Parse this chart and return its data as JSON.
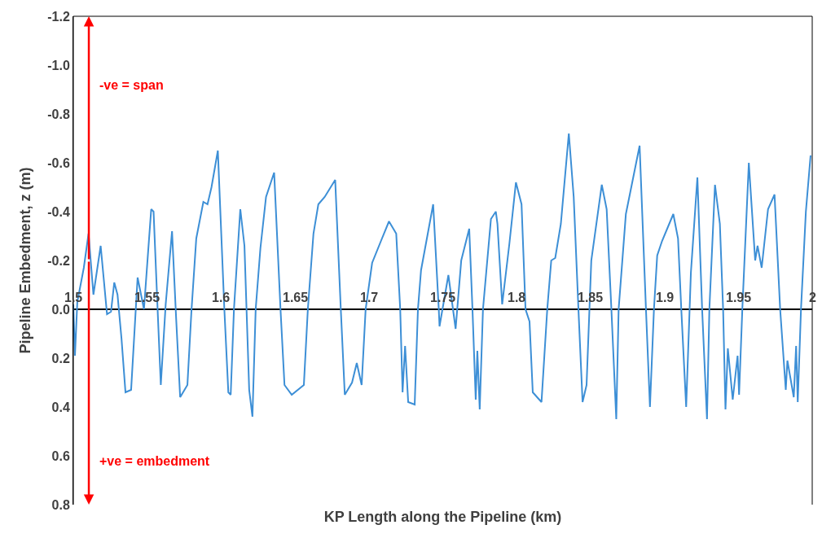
{
  "chart_data": {
    "type": "line",
    "xlabel": "KP Length along the Pipeline (km)",
    "ylabel": "Pipeline Embedment, z (m)",
    "annotations": [
      "-ve = span",
      "+ve = embedment"
    ],
    "xlim": [
      1.5,
      2.0
    ],
    "xticks": [
      1.5,
      1.55,
      1.6,
      1.65,
      1.7,
      1.75,
      1.8,
      1.85,
      1.9,
      1.95,
      2
    ],
    "ylim": [
      0.8,
      -1.2
    ],
    "yticks": [
      -1.2,
      {
        "value": -1.0,
        "label": "-1.0"
      },
      -0.8,
      -0.6,
      -0.4,
      -0.2,
      {
        "value": 0.0,
        "label": "0.0"
      },
      0.2,
      0.4,
      0.6,
      0.8
    ],
    "grid": false,
    "marker": "none",
    "line_style": "solid",
    "series": [
      {
        "color": "#3d8fd6",
        "x": [
          1.5,
          1.5011,
          1.5027,
          1.5071,
          1.5103,
          1.5136,
          1.5185,
          1.5228,
          1.5255,
          1.5277,
          1.5299,
          1.5326,
          1.5353,
          1.5391,
          1.5435,
          1.5478,
          1.5527,
          1.5543,
          1.5571,
          1.5592,
          1.5625,
          1.5668,
          1.5696,
          1.5723,
          1.5772,
          1.5799,
          1.5832,
          1.588,
          1.5908,
          1.5935,
          1.5978,
          1.6022,
          1.6049,
          1.6065,
          1.6087,
          1.613,
          1.6158,
          1.619,
          1.6212,
          1.6234,
          1.6266,
          1.6304,
          1.6359,
          1.6402,
          1.6429,
          1.6478,
          1.656,
          1.6587,
          1.6625,
          1.6658,
          1.6701,
          1.6772,
          1.681,
          1.6837,
          1.6886,
          1.6918,
          1.6951,
          1.6978,
          1.7022,
          1.7082,
          1.7136,
          1.7185,
          1.7212,
          1.7228,
          1.7245,
          1.7266,
          1.731,
          1.7332,
          1.7353,
          1.7435,
          1.7473,
          1.7478,
          1.7538,
          1.7587,
          1.7625,
          1.7679,
          1.7701,
          1.7723,
          1.7734,
          1.775,
          1.7772,
          1.7826,
          1.7859,
          1.787,
          1.7902,
          1.7951,
          1.7995,
          1.8033,
          1.806,
          1.8087,
          1.8109,
          1.8168,
          1.8207,
          1.8234,
          1.8261,
          1.8299,
          1.8353,
          1.8386,
          1.8418,
          1.8446,
          1.8473,
          1.8505,
          1.8576,
          1.8609,
          1.8641,
          1.8674,
          1.869,
          1.8739,
          1.8832,
          1.8875,
          1.8902,
          1.8929,
          1.8951,
          1.8984,
          1.906,
          1.9092,
          1.9114,
          1.9147,
          1.9179,
          1.9223,
          1.9255,
          1.9288,
          1.9304,
          1.9342,
          1.9375,
          1.9397,
          1.9413,
          1.9429,
          1.9462,
          1.9495,
          1.9505,
          1.9527,
          1.9571,
          1.9614,
          1.963,
          1.9658,
          1.9701,
          1.9745,
          1.9783,
          1.9821,
          1.9832,
          1.9875,
          1.9891,
          1.9902,
          1.9924,
          1.9957,
          1.9989
        ],
        "values": [
          -0.02,
          0.19,
          -0.03,
          -0.17,
          -0.31,
          -0.06,
          -0.26,
          0.02,
          0.01,
          -0.11,
          -0.06,
          0.12,
          0.34,
          0.33,
          -0.13,
          0.0,
          -0.41,
          -0.4,
          0.01,
          0.31,
          -0.02,
          -0.32,
          0.04,
          0.36,
          0.31,
          0.01,
          -0.29,
          -0.44,
          -0.43,
          -0.5,
          -0.65,
          0.0,
          0.34,
          0.35,
          0.0,
          -0.41,
          -0.26,
          0.33,
          0.44,
          0.0,
          -0.25,
          -0.46,
          -0.56,
          0.0,
          0.31,
          0.35,
          0.31,
          0.0,
          -0.31,
          -0.43,
          -0.46,
          -0.53,
          0.0,
          0.35,
          0.3,
          0.22,
          0.31,
          0.0,
          -0.19,
          -0.28,
          -0.36,
          -0.31,
          0.0,
          0.34,
          0.15,
          0.38,
          0.39,
          0.0,
          -0.16,
          -0.43,
          0.0,
          0.07,
          -0.14,
          0.08,
          -0.2,
          -0.33,
          0.0,
          0.37,
          0.17,
          0.41,
          0.0,
          -0.37,
          -0.4,
          -0.35,
          -0.02,
          -0.27,
          -0.52,
          -0.43,
          0.0,
          0.05,
          0.34,
          0.38,
          0.0,
          -0.2,
          -0.21,
          -0.35,
          -0.72,
          -0.46,
          0.0,
          0.38,
          0.31,
          -0.2,
          -0.51,
          -0.41,
          0.0,
          0.45,
          0.0,
          -0.39,
          -0.67,
          0.0,
          0.4,
          0.0,
          -0.22,
          -0.28,
          -0.39,
          -0.29,
          0.0,
          0.4,
          -0.15,
          -0.54,
          0.0,
          0.45,
          0.0,
          -0.51,
          -0.35,
          0.0,
          0.41,
          0.16,
          0.37,
          0.19,
          0.35,
          0.0,
          -0.6,
          -0.2,
          -0.26,
          -0.17,
          -0.41,
          -0.47,
          0.0,
          0.33,
          0.21,
          0.36,
          0.15,
          0.38,
          0.0,
          -0.4,
          -0.63
        ]
      }
    ]
  }
}
